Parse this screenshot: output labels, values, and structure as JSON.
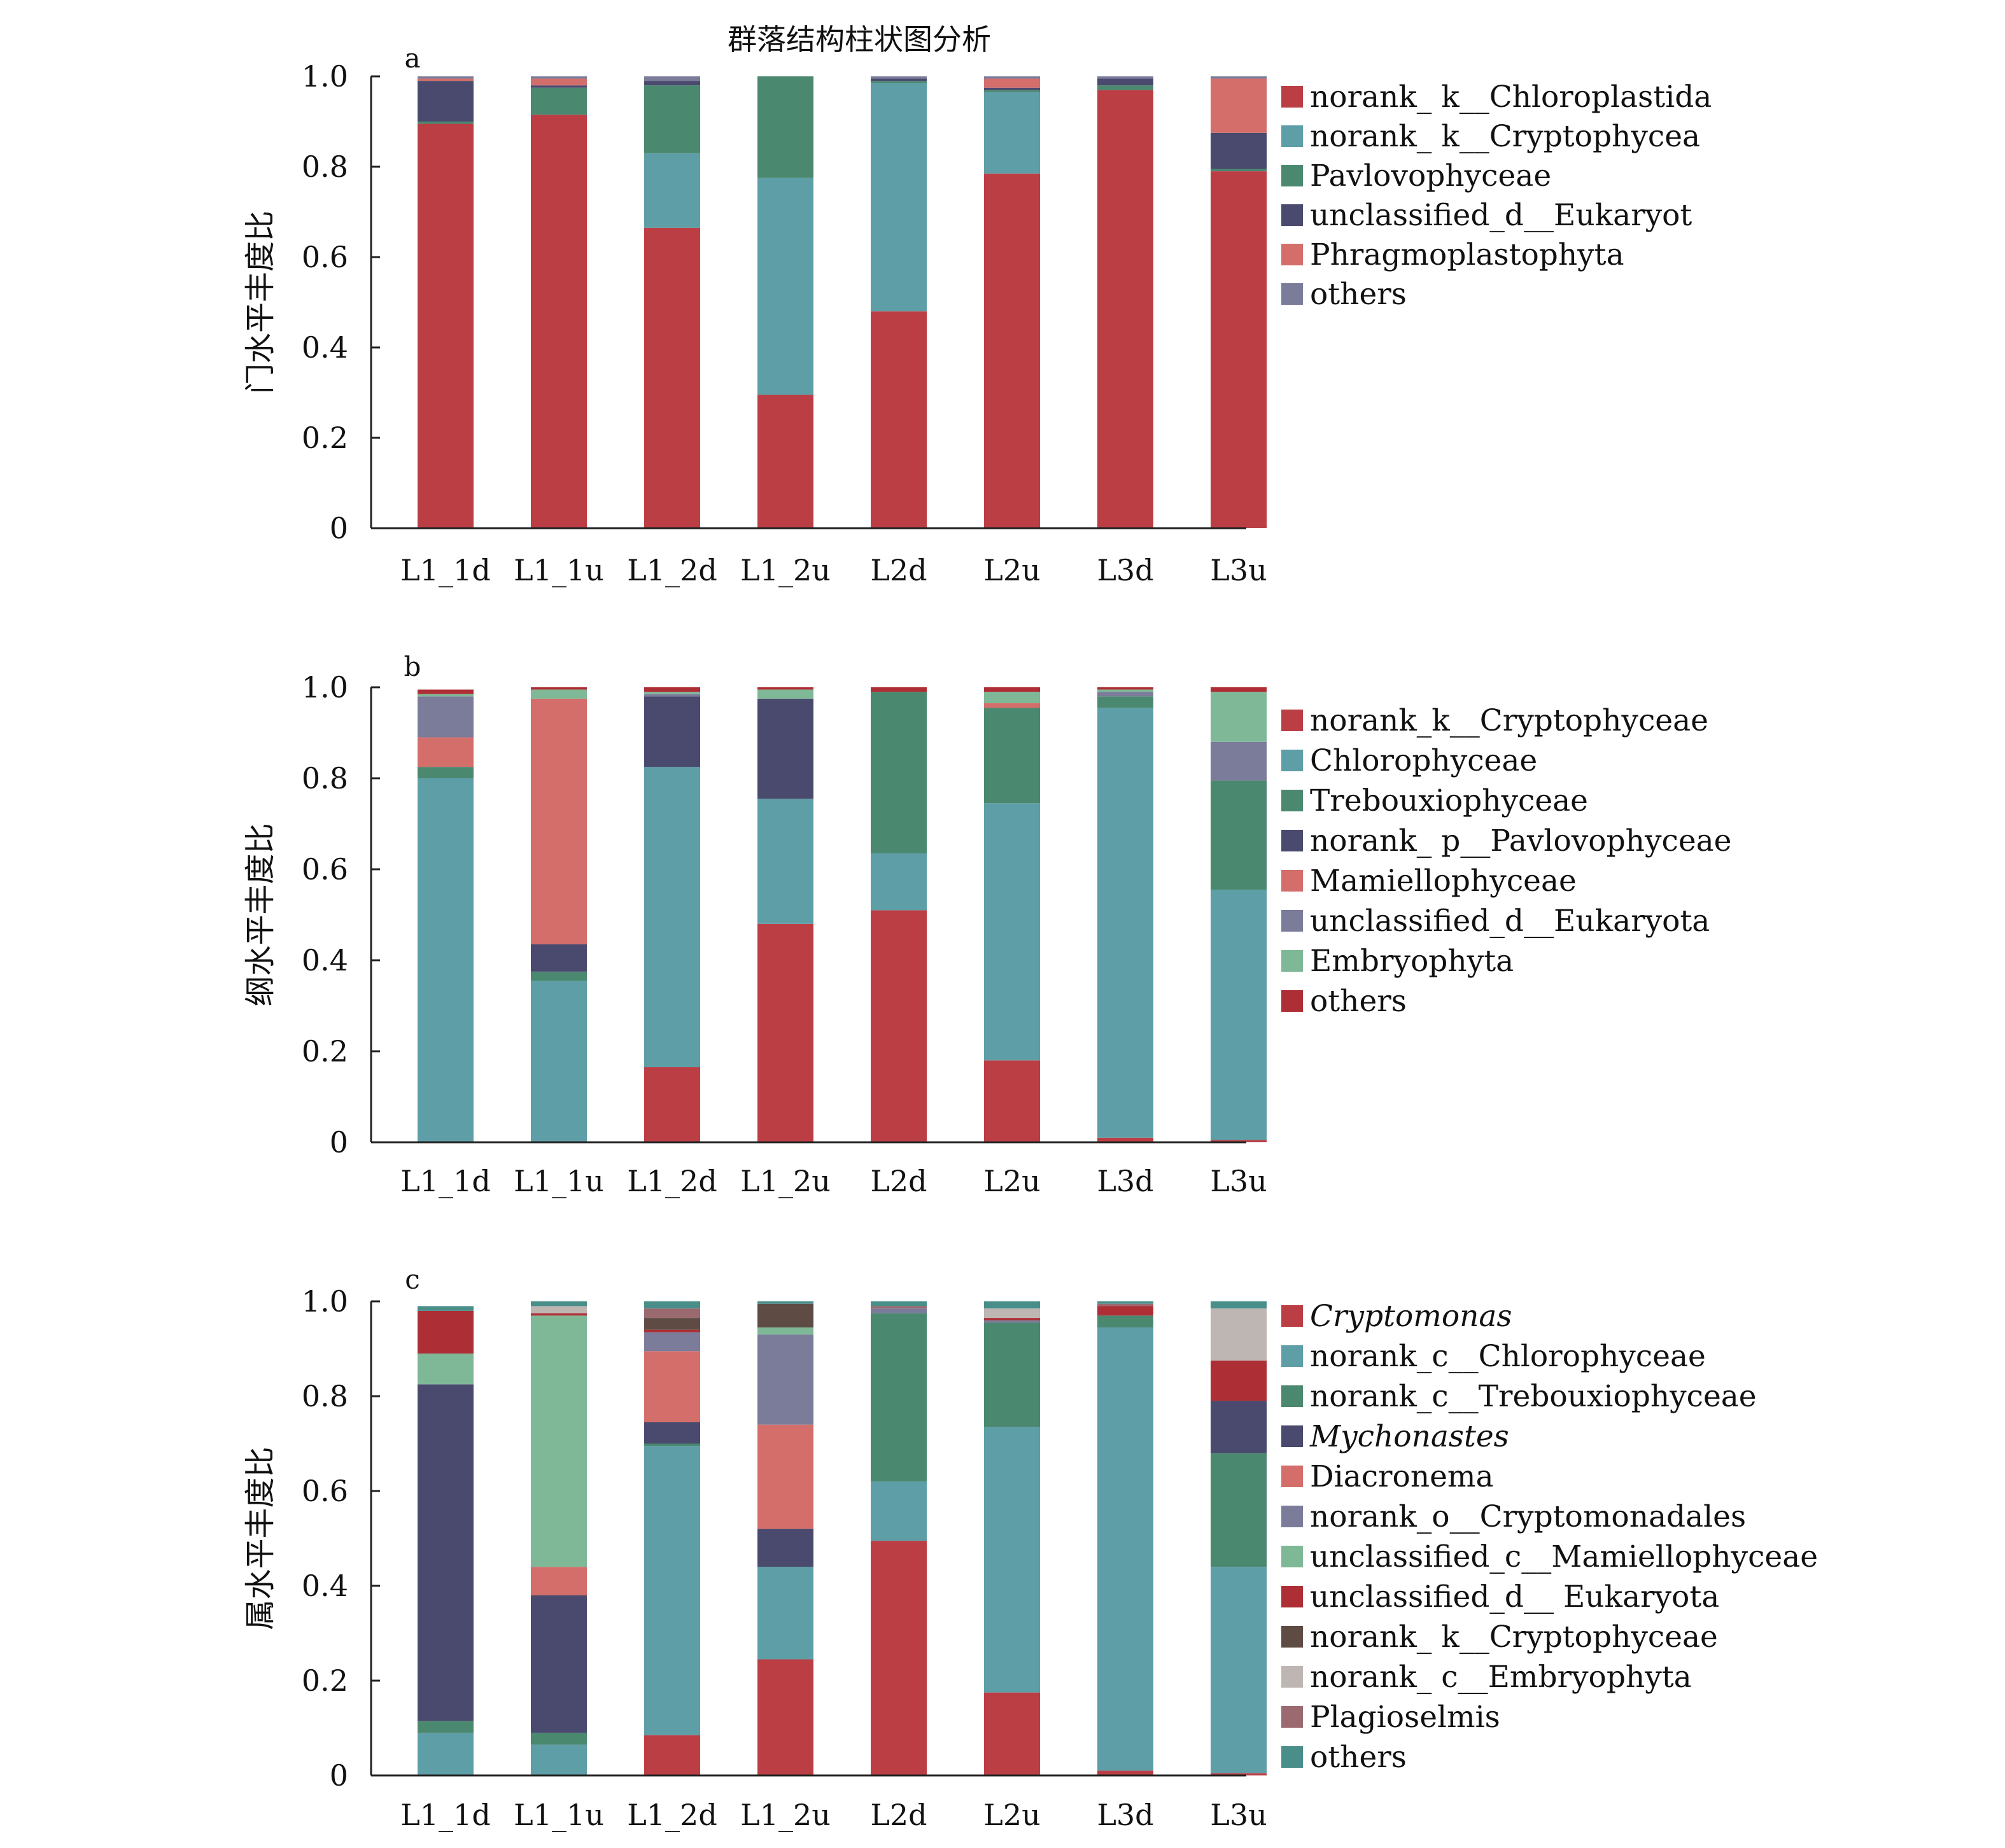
{
  "title": "群落结构柱状图分析",
  "ytick_labels": [
    "0",
    "0.2",
    "0.4",
    "0.6",
    "0.8",
    "1.0"
  ],
  "chart_data": [
    {
      "type": "bar",
      "stacked": true,
      "panel_label": "a",
      "ylabel": "门水平丰度比",
      "ylim": [
        0,
        1
      ],
      "categories": [
        "L1_1d",
        "L1_1u",
        "L1_2d",
        "L1_2u",
        "L2d",
        "L2u",
        "L3d",
        "L3u"
      ],
      "series": [
        {
          "name": "norank_ k__Chloroplastida",
          "color": "#bc3e45",
          "values": [
            0.895,
            0.915,
            0.665,
            0.295,
            0.48,
            0.785,
            0.97,
            0.79
          ]
        },
        {
          "name": "norank_ k__Cryptophycea",
          "color": "#5e9ea6",
          "values": [
            0.0,
            0.0,
            0.165,
            0.48,
            0.505,
            0.18,
            0.0,
            0.0
          ]
        },
        {
          "name": "Pavlovophyceae",
          "color": "#4b8870",
          "values": [
            0.005,
            0.06,
            0.15,
            0.225,
            0.005,
            0.005,
            0.01,
            0.005
          ]
        },
        {
          "name": "unclassified_d__Eukaryot",
          "color": "#4a4a6e",
          "values": [
            0.09,
            0.005,
            0.01,
            0.0,
            0.005,
            0.005,
            0.015,
            0.08
          ]
        },
        {
          "name": "Phragmoplastophyta",
          "color": "#d36e6a",
          "values": [
            0.005,
            0.015,
            0.0,
            0.0,
            0.0,
            0.02,
            0.0,
            0.12
          ]
        },
        {
          "name": "others",
          "color": "#7b7b9a",
          "values": [
            0.005,
            0.005,
            0.01,
            0.0,
            0.005,
            0.005,
            0.005,
            0.005
          ]
        }
      ]
    },
    {
      "type": "bar",
      "stacked": true,
      "panel_label": "b",
      "ylabel": "纲水平丰度比",
      "ylim": [
        0,
        1
      ],
      "categories": [
        "L1_1d",
        "L1_1u",
        "L1_2d",
        "L1_2u",
        "L2d",
        "L2u",
        "L3d",
        "L3u"
      ],
      "series": [
        {
          "name": "norank_k__Cryptophyceae",
          "color": "#bc3e45",
          "values": [
            0.0,
            0.0,
            0.165,
            0.48,
            0.51,
            0.18,
            0.01,
            0.005
          ]
        },
        {
          "name": "Chlorophyceae",
          "color": "#5e9ea6",
          "values": [
            0.8,
            0.355,
            0.66,
            0.275,
            0.125,
            0.565,
            0.945,
            0.55
          ]
        },
        {
          "name": "Trebouxiophyceae",
          "color": "#4b8870",
          "values": [
            0.025,
            0.02,
            0.0,
            0.0,
            0.355,
            0.21,
            0.025,
            0.24
          ]
        },
        {
          "name": "norank_ p__Pavlovophyceae",
          "color": "#4a4a6e",
          "values": [
            0.0,
            0.06,
            0.155,
            0.22,
            0.0,
            0.0,
            0.0,
            0.0
          ]
        },
        {
          "name": "Mamiellophyceae",
          "color": "#d36e6a",
          "values": [
            0.065,
            0.54,
            0.0,
            0.0,
            0.0,
            0.01,
            0.0,
            0.0
          ]
        },
        {
          "name": "unclassified_d__Eukaryota",
          "color": "#7b7b9a",
          "values": [
            0.09,
            0.0,
            0.005,
            0.0,
            0.0,
            0.0,
            0.01,
            0.085
          ]
        },
        {
          "name": "Embryophyta",
          "color": "#7fb896",
          "values": [
            0.005,
            0.02,
            0.005,
            0.02,
            0.0,
            0.025,
            0.005,
            0.11
          ]
        },
        {
          "name": "others",
          "color": "#ad2f35",
          "values": [
            0.01,
            0.005,
            0.01,
            0.005,
            0.01,
            0.01,
            0.005,
            0.01
          ]
        }
      ]
    },
    {
      "type": "bar",
      "stacked": true,
      "panel_label": "c",
      "ylabel": "属水平丰度比",
      "ylim": [
        0,
        1
      ],
      "categories": [
        "L1_1d",
        "L1_1u",
        "L1_2d",
        "L1_2u",
        "L2d",
        "L2u",
        "L3d",
        "L3u"
      ],
      "series": [
        {
          "name": "Cryptomonas",
          "italic": true,
          "color": "#bc3e45",
          "values": [
            0.0,
            0.0,
            0.085,
            0.245,
            0.495,
            0.175,
            0.01,
            0.005
          ]
        },
        {
          "name": "norank_c__Chlorophyceae",
          "color": "#5e9ea6",
          "values": [
            0.09,
            0.065,
            0.61,
            0.195,
            0.125,
            0.56,
            0.935,
            0.435
          ]
        },
        {
          "name": "norank_c__Trebouxiophyceae",
          "color": "#4b8870",
          "values": [
            0.025,
            0.025,
            0.005,
            0.0,
            0.355,
            0.22,
            0.025,
            0.24
          ]
        },
        {
          "name": "Mychonastes",
          "italic": true,
          "color": "#4a4a6e",
          "values": [
            0.71,
            0.29,
            0.045,
            0.08,
            0.0,
            0.0,
            0.0,
            0.11
          ]
        },
        {
          "name": "Diacronema",
          "color": "#d36e6a",
          "values": [
            0.0,
            0.06,
            0.15,
            0.22,
            0.0,
            0.0,
            0.0,
            0.0
          ]
        },
        {
          "name": "norank_o__Cryptomonadales",
          "color": "#7b7b9a",
          "values": [
            0.0,
            0.0,
            0.04,
            0.19,
            0.01,
            0.005,
            0.0,
            0.0
          ]
        },
        {
          "name": "unclassified_c__Mamiellophyceae",
          "color": "#7fb896",
          "values": [
            0.065,
            0.53,
            0.0,
            0.015,
            0.0,
            0.0,
            0.0,
            0.0
          ]
        },
        {
          "name": "unclassified_d__ Eukaryota",
          "color": "#ad2f35",
          "values": [
            0.09,
            0.005,
            0.005,
            0.0,
            0.0,
            0.005,
            0.02,
            0.085
          ]
        },
        {
          "name": "norank_ k__Cryptophyceae",
          "color": "#5e4c44",
          "values": [
            0.0,
            0.0,
            0.025,
            0.05,
            0.0,
            0.0,
            0.0,
            0.0
          ]
        },
        {
          "name": "norank_ c__Embryophyta",
          "color": "#beb6b3",
          "values": [
            0.0,
            0.015,
            0.0,
            0.0,
            0.0,
            0.02,
            0.0,
            0.11
          ]
        },
        {
          "name": "Plagioselmis",
          "color": "#9b6a70",
          "values": [
            0.0,
            0.0,
            0.02,
            0.0,
            0.005,
            0.0,
            0.005,
            0.0
          ]
        },
        {
          "name": "others",
          "color": "#4a8e8a",
          "values": [
            0.01,
            0.01,
            0.015,
            0.005,
            0.01,
            0.015,
            0.005,
            0.015
          ]
        }
      ]
    }
  ]
}
